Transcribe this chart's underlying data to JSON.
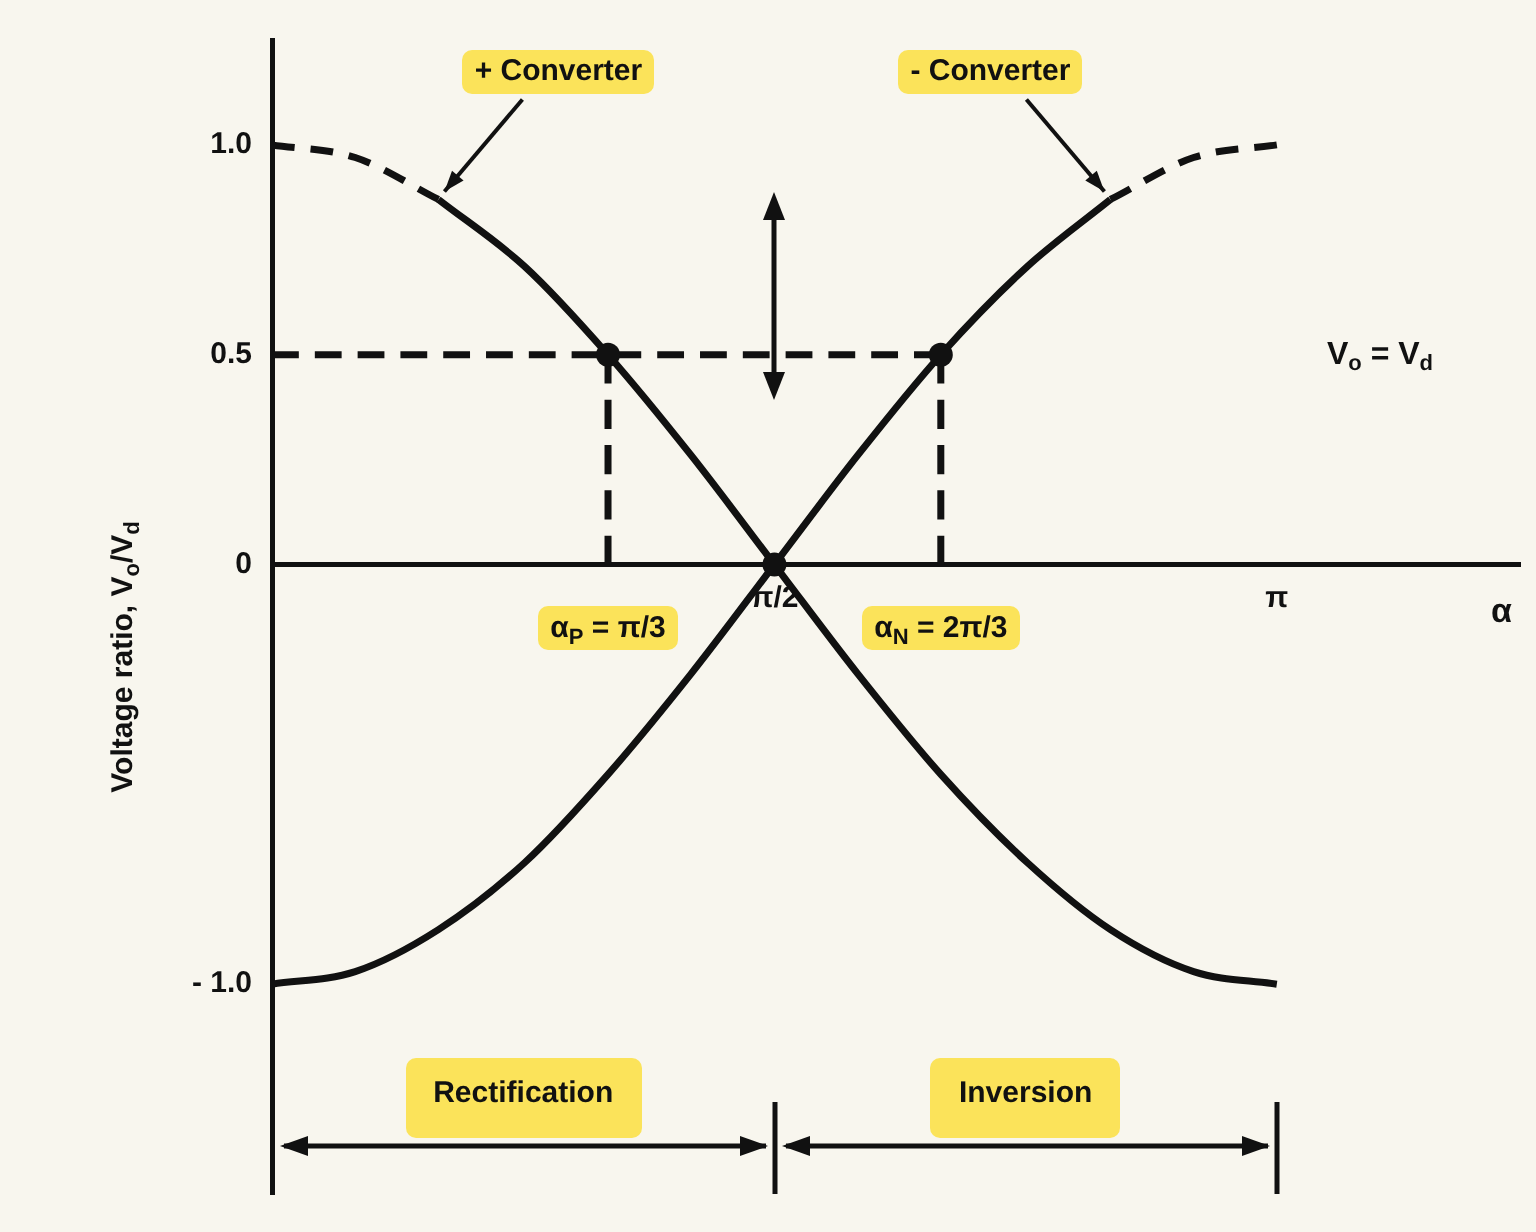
{
  "chart_data": {
    "type": "line",
    "xlabel": "α",
    "ylabel": "Voltage ratio, V$_{o}$/V$_{d}$",
    "xlim": [
      0,
      3.9
    ],
    "ylim": [
      -1.5,
      1.25
    ],
    "xticks": [
      {
        "value": 1.57,
        "label": "π/2"
      },
      {
        "value": 3.14,
        "label": "π"
      }
    ],
    "yticks": [
      {
        "value": -1,
        "label": "- 1.0"
      },
      0,
      {
        "value": 0.5,
        "label": "0.5"
      },
      {
        "value": 1,
        "label": "1.0"
      }
    ],
    "grid": false,
    "series": [
      {
        "type": "scatter",
        "color": "#111111",
        "marker": "circle",
        "x": [
          1.05,
          1.57,
          2.09
        ],
        "values": [
          0.5,
          0,
          0.5
        ]
      },
      {
        "type": "line",
        "color": "#111111",
        "line_style": "dashed",
        "marker": "none",
        "x": [
          0,
          0.26,
          0.52
        ],
        "values": [
          1,
          0.97,
          0.87
        ]
      },
      {
        "type": "line",
        "color": "#111111",
        "line_style": "solid",
        "marker": "none",
        "x": [
          0.52,
          0.79,
          1.05,
          1.31,
          1.57,
          1.83,
          2.09,
          2.36,
          2.62,
          2.88,
          3.14
        ],
        "values": [
          0.87,
          0.71,
          0.5,
          0.26,
          0,
          -0.26,
          -0.5,
          -0.71,
          -0.87,
          -0.97,
          -1
        ]
      },
      {
        "type": "line",
        "color": "#111111",
        "line_style": "solid",
        "marker": "none",
        "x": [
          0,
          0.26,
          0.52,
          0.79,
          1.05,
          1.31,
          1.57,
          1.83,
          2.09,
          2.36,
          2.62
        ],
        "values": [
          -1,
          -0.97,
          -0.87,
          -0.71,
          -0.5,
          -0.26,
          0,
          0.26,
          0.5,
          0.71,
          0.87
        ]
      },
      {
        "type": "line",
        "color": "#111111",
        "line_style": "dashed",
        "marker": "none",
        "x": [
          2.62,
          2.88,
          3.14
        ],
        "values": [
          0.87,
          0.97,
          1
        ]
      },
      {
        "type": "line",
        "color": "#111111",
        "line_style": "dashed",
        "marker": "none",
        "x": [
          0,
          2.09
        ],
        "values": [
          0.5,
          0.5
        ]
      },
      {
        "type": "line",
        "color": "#111111",
        "line_style": "dashed",
        "marker": "none",
        "x": [
          1.05,
          1.05
        ],
        "values": [
          0.5,
          0
        ]
      },
      {
        "type": "line",
        "color": "#111111",
        "line_style": "dashed",
        "marker": "none",
        "x": [
          2.09,
          2.09
        ],
        "values": [
          0.5,
          0
        ]
      }
    ],
    "annotations": [
      {
        "text": "+ Converter",
        "x": 0.52,
        "y": 0.87
      },
      {
        "text": "- Converter",
        "x": 2.62,
        "y": 0.87
      },
      {
        "text": "α$_{P}$ = π/3",
        "x": 1.05,
        "y": 0
      },
      {
        "text": "α$_{N}$ = 2π/3",
        "x": 2.09,
        "y": 0
      },
      "V$_{o}$ = V$_{d}$",
      "Rectification",
      "Inversion"
    ]
  }
}
